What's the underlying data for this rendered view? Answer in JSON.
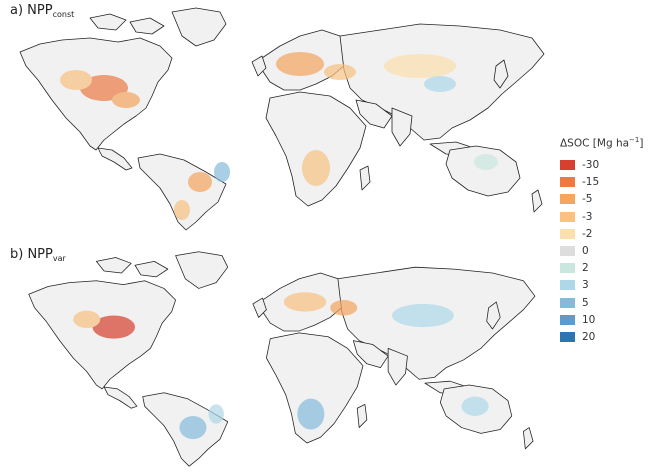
{
  "panels": [
    {
      "letter": "a) NPP",
      "subscript": "const"
    },
    {
      "letter": "b) NPP",
      "subscript": "var"
    }
  ],
  "legend": {
    "title": "ΔSOC [Mg ha",
    "title_sup": "−1",
    "title_end": "]",
    "items": [
      {
        "label": "-30",
        "color": "#d7402d"
      },
      {
        "label": "-15",
        "color": "#ec7a45"
      },
      {
        "label": "-5",
        "color": "#f4a55e"
      },
      {
        "label": "-3",
        "color": "#f7c282"
      },
      {
        "label": "-2",
        "color": "#fbdfae"
      },
      {
        "label": "0",
        "color": "#dddddd"
      },
      {
        "label": "2",
        "color": "#c9e7df"
      },
      {
        "label": "3",
        "color": "#aed8e8"
      },
      {
        "label": "5",
        "color": "#84bbdb"
      },
      {
        "label": "10",
        "color": "#5c9bcb"
      },
      {
        "label": "20",
        "color": "#2f73b4"
      }
    ]
  }
}
